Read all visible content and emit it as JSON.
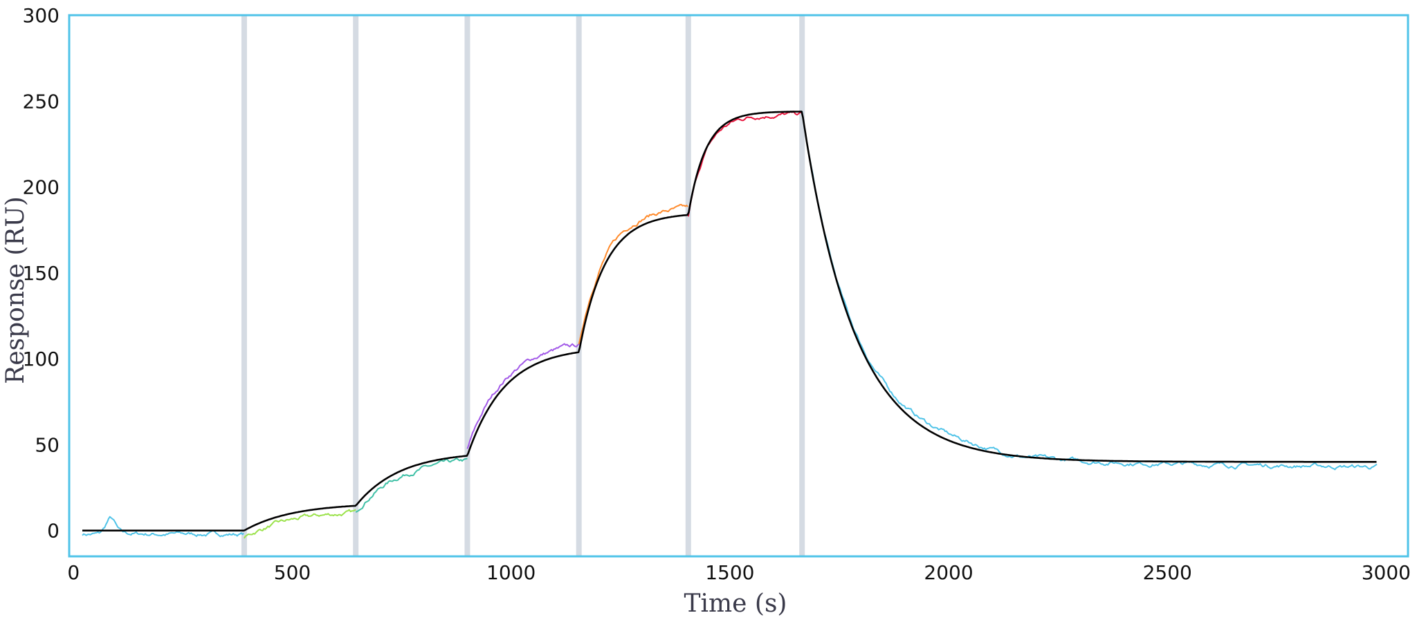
{
  "chart_data": {
    "type": "line",
    "title": "",
    "xlabel": "Time (s)",
    "ylabel": "Response (RU)",
    "xlim": [
      -10,
      3050
    ],
    "ylim": [
      -15,
      300
    ],
    "x_ticks": [
      0,
      500,
      1000,
      1500,
      2000,
      2500,
      3000
    ],
    "y_ticks": [
      0,
      50,
      100,
      150,
      200,
      250,
      300
    ],
    "grid": false,
    "legend": "none",
    "frame_color": "#4fc3e8",
    "marker_color": "#d5dbe3",
    "injection_markers": [
      390,
      645,
      900,
      1155,
      1405,
      1665
    ],
    "segment_colors": [
      "#9be24b",
      "#3fc0a6",
      "#a259e8",
      "#ff8a2b",
      "#e8143c"
    ],
    "dissociation_color": "#4fc3e8",
    "fit_color": "#000000",
    "phases": [
      {
        "start": 20,
        "end": 390,
        "plateau": 0
      },
      {
        "start": 390,
        "end": 645,
        "plateau": 16
      },
      {
        "start": 645,
        "end": 900,
        "plateau": 46
      },
      {
        "start": 900,
        "end": 1155,
        "plateau": 107
      },
      {
        "start": 1155,
        "end": 1405,
        "plateau": 185
      },
      {
        "start": 1405,
        "end": 1665,
        "plateau": 244
      },
      {
        "start": 1665,
        "end": 2980,
        "plateau": 40
      }
    ]
  }
}
